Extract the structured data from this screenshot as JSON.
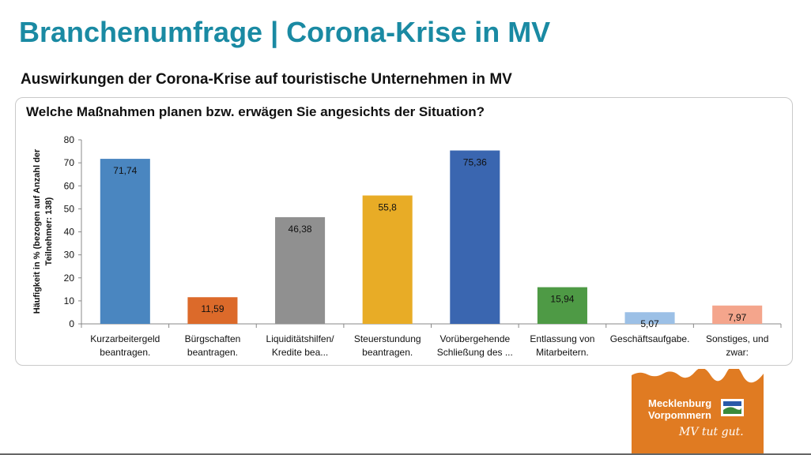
{
  "header": {
    "title": "Branchenumfrage | Corona-Krise in MV",
    "subtitle": "Auswirkungen der Corona-Krise auf touristische Unternehmen in MV"
  },
  "chart_data": {
    "type": "bar",
    "title": "Welche Maßnahmen planen bzw. erwägen Sie angesichts der Situation?",
    "ylabel": "Häufigkeit in % (bezogen auf Anzahl der Teilnehmer: 138)",
    "ylabel_lines": [
      "Häufigkeit in % (bezogen auf Anzahl der",
      "Teilnehmer: 138)"
    ],
    "xlabel": "",
    "ylim": [
      0,
      80
    ],
    "yticks": [
      0,
      10,
      20,
      30,
      40,
      50,
      60,
      70,
      80
    ],
    "grid": false,
    "legend": "none",
    "categories": [
      [
        "Kurzarbeitergeld",
        "beantragen."
      ],
      [
        "Bürgschaften",
        "beantragen."
      ],
      [
        "Liquiditätshilfen/",
        "Kredite bea..."
      ],
      [
        "Steuerstundung",
        "beantragen."
      ],
      [
        "Vorübergehende",
        "Schließung des ..."
      ],
      [
        "Entlassung von",
        "Mitarbeitern."
      ],
      [
        "Geschäftsaufgabe."
      ],
      [
        "Sonstiges, und",
        "zwar:"
      ]
    ],
    "values": [
      71.74,
      11.59,
      46.38,
      55.8,
      75.36,
      15.94,
      5.07,
      7.97
    ],
    "value_labels": [
      "71,74",
      "11,59",
      "46,38",
      "55,8",
      "75,36",
      "15,94",
      "5,07",
      "7,97"
    ],
    "colors": [
      "#4a86c0",
      "#dc6a2a",
      "#909090",
      "#e8ac26",
      "#3a66b0",
      "#4e9a45",
      "#9cc0e6",
      "#f4a58c"
    ]
  },
  "logo": {
    "line1": "Mecklenburg",
    "line2": "Vorpommern",
    "slogan": "MV tut gut.",
    "background": "#e07b22"
  }
}
